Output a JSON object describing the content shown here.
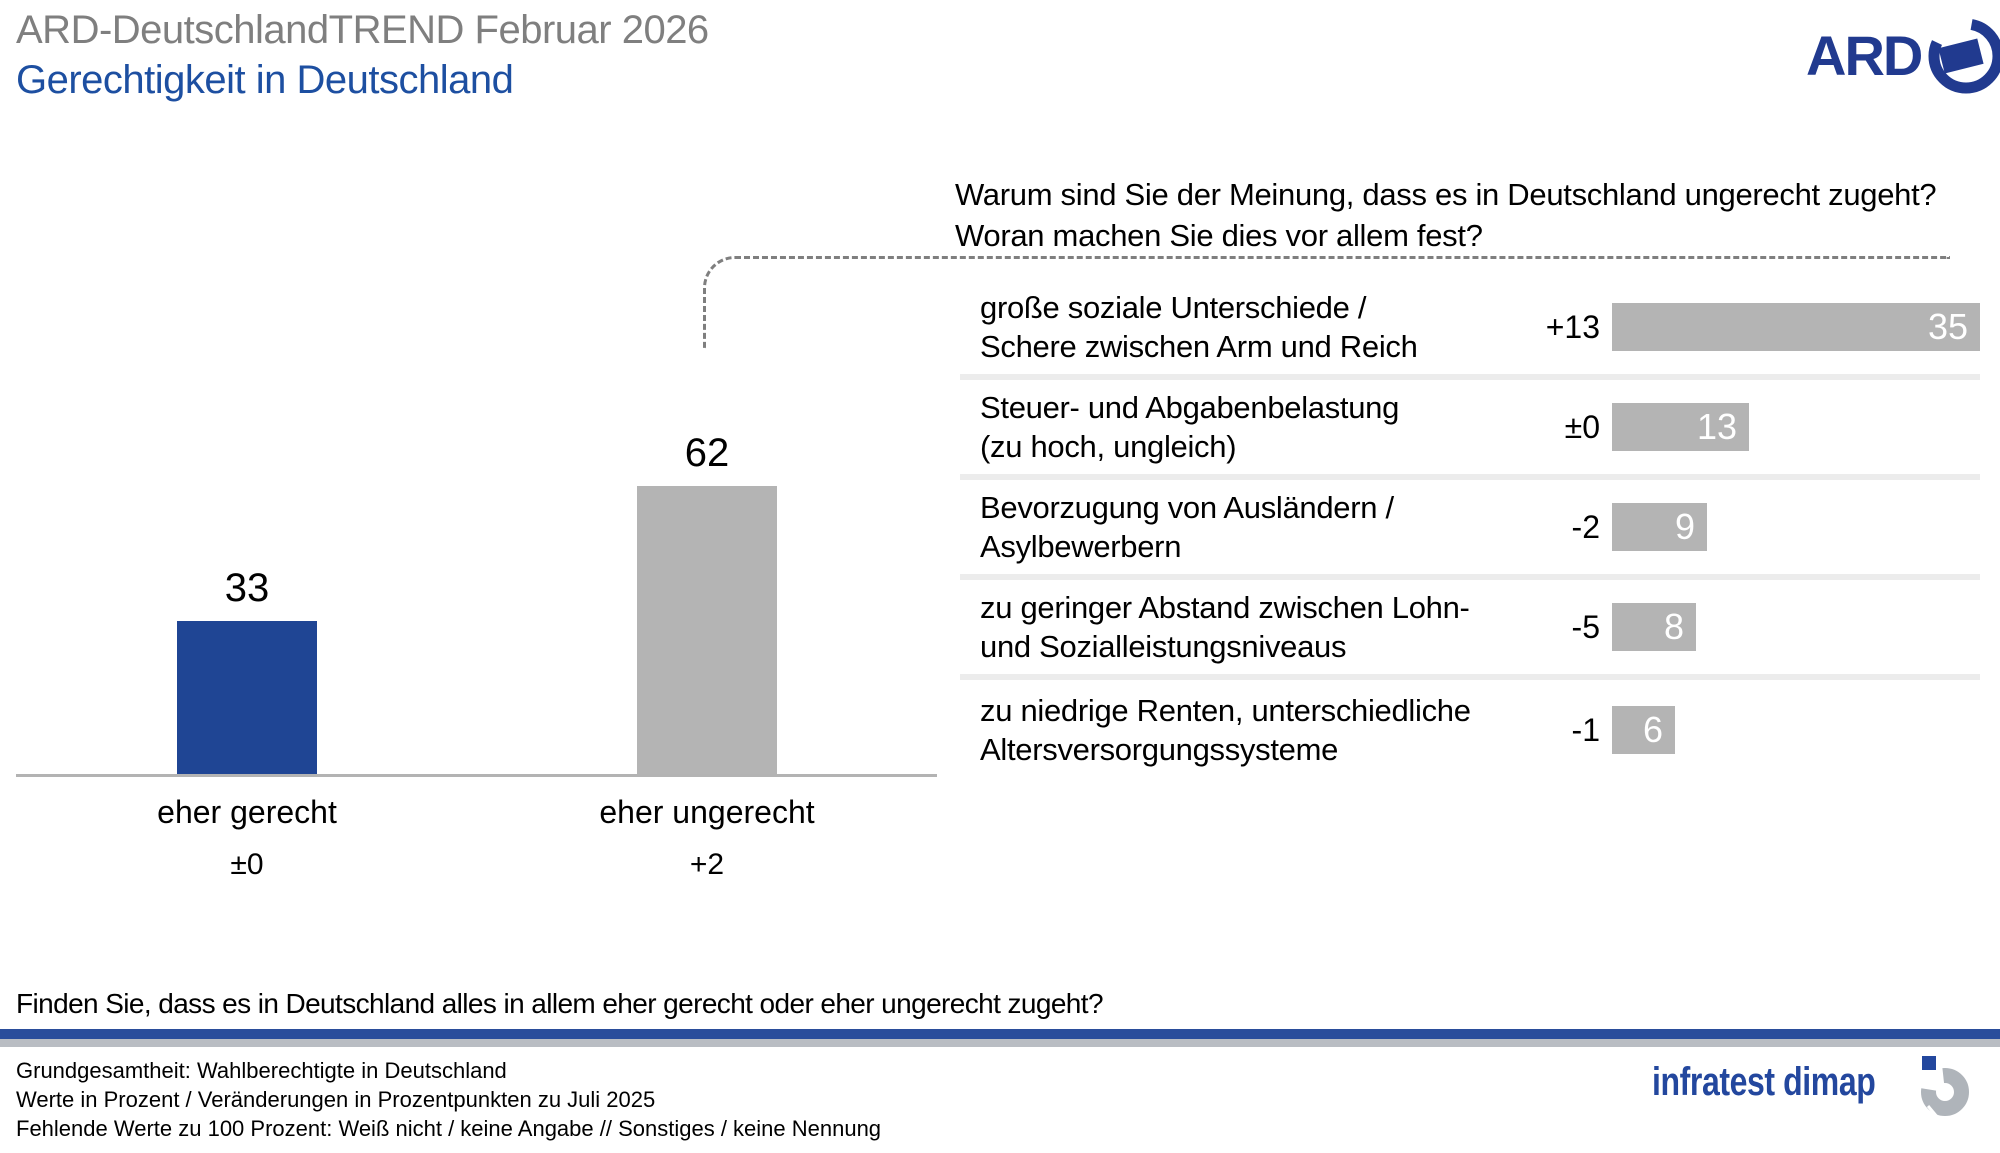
{
  "header": {
    "pretitle": "ARD-DeutschlandTREND Februar 2026",
    "title": "Gerechtigkeit in Deutschland",
    "ard_logo_text": "ARD"
  },
  "colors": {
    "accent_blue": "#1F4594",
    "bar_gray": "#B4B4B4",
    "pretitle_gray": "#7F7F7F",
    "heading_blue": "#1D4FA1",
    "ard_blue": "#213A8F",
    "rule_blue": "#2A4D9B",
    "rule_gray": "#B9BDC3",
    "separator_gray": "#ECECEC",
    "dash_gray": "#7F7F7F",
    "infratest_blue": "#23479E",
    "infratest_mark_gray": "#AFB4BA"
  },
  "chart_data": [
    {
      "type": "bar",
      "title": "Finden Sie, dass es in Deutschland alles in allem eher gerecht oder eher ungerecht zugeht?",
      "categories": [
        "eher gerecht",
        "eher ungerecht"
      ],
      "values": [
        33,
        62
      ],
      "changes": [
        "±0",
        "+2"
      ],
      "bar_colors": [
        "#1F4594",
        "#B4B4B4"
      ],
      "unit": "Prozent",
      "ylim": [
        0,
        70
      ],
      "grid": false,
      "value_labels_position": "above"
    },
    {
      "type": "bar",
      "orientation": "horizontal",
      "title": "Warum sind Sie der Meinung, dass es in Deutschland ungerecht zugeht? Woran machen Sie dies vor allem fest?",
      "title_lines": [
        "Warum sind Sie der Meinung, dass es in Deutschland ungerecht zugeht?",
        "Woran machen Sie dies vor allem fest?"
      ],
      "categories": [
        "große soziale Unterschiede / Schere zwischen Arm und Reich",
        "Steuer- und Abgabenbelastung (zu hoch, ungleich)",
        "Bevorzugung von Ausländern / Asylbewerbern",
        "zu geringer Abstand zwischen Lohn- und Sozialleistungsniveaus",
        "zu niedrige Renten, unterschiedliche Altersversorgungssysteme"
      ],
      "display_labels": [
        "große soziale Unterschiede /\nSchere zwischen Arm und Reich",
        "Steuer- und Abgabenbelastung\n(zu hoch, ungleich)",
        "Bevorzugung von Ausländern /\nAsylbewerbern",
        "zu geringer Abstand zwischen Lohn-\nund Sozialleistungsniveaus",
        "zu niedrige Renten, unterschiedliche\nAltersversorgungssysteme"
      ],
      "values": [
        35,
        13,
        9,
        8,
        6
      ],
      "changes": [
        "+13",
        "±0",
        "-2",
        "-5",
        "-1"
      ],
      "bar_color": "#B4B4B4",
      "unit": "Prozent",
      "xlim": [
        0,
        35
      ],
      "grid": false,
      "value_labels_position": "inside-right"
    }
  ],
  "footer": {
    "lines": [
      "Grundgesamtheit: Wahlberechtigte in Deutschland",
      "Werte in Prozent / Veränderungen in Prozentpunkten zu Juli 2025",
      "Fehlende Werte zu 100 Prozent: Weiß nicht / keine Angabe // Sonstiges / keine Nennung"
    ],
    "brand": "infratest dimap"
  }
}
